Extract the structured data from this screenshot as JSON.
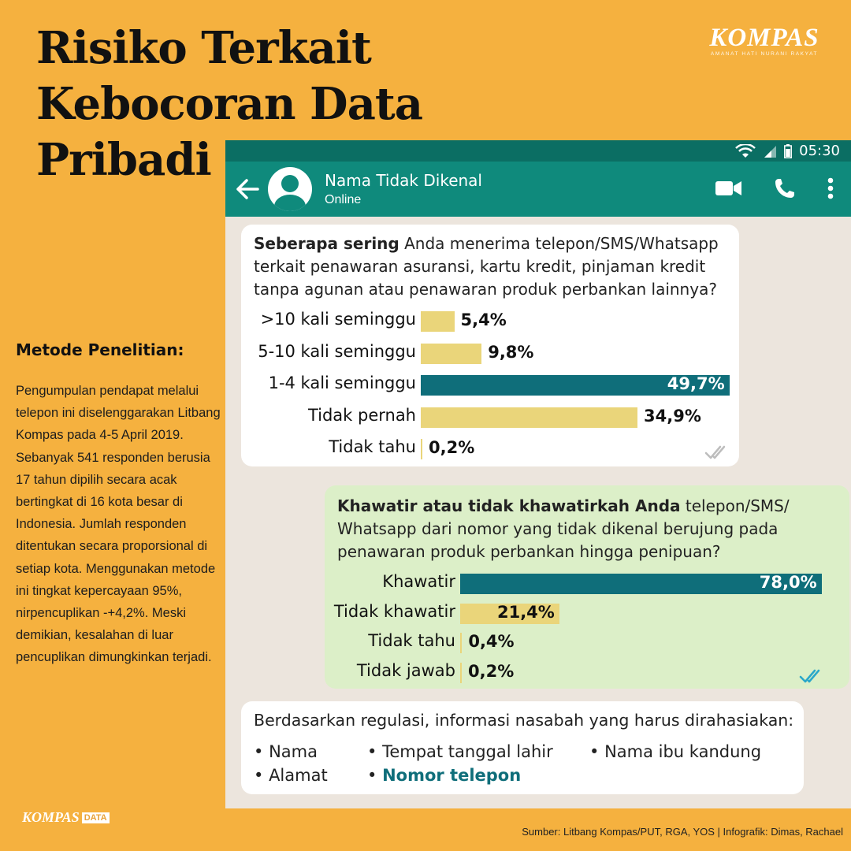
{
  "title": [
    "Risiko Terkait",
    "Kebocoran Data",
    "Pribadi"
  ],
  "brand": {
    "name": "KOMPAS",
    "tagline": "AMANAT HATI NURANI RAKYAT"
  },
  "method": {
    "heading": "Metode Penelitian:",
    "body": "Pengumpulan pendapat melalui telepon ini diselenggarakan Litbang Kompas pada 4-5 April 2019. Sebanyak 541 responden berusia 17 tahun dipilih secara acak bertingkat di 16 kota besar di Indonesia. Jumlah responden ditentukan secara proporsional di setiap kota. Menggunakan metode ini tingkat kepercayaan 95%, nirpencuplikan -+4,2%. Meski demikian, kesalahan di luar pencuplikan dimungkinkan terjadi."
  },
  "phone": {
    "time": "05:30",
    "contact_name": "Nama Tidak Dikenal",
    "contact_status": "Online"
  },
  "colors": {
    "accent": "#0F6E7A",
    "bar_light": "#EAD57A",
    "page": "#F5B13F"
  },
  "chart_data": [
    {
      "type": "bar",
      "orientation": "horizontal",
      "question_bold": "Seberapa sering",
      "question_rest": " Anda menerima telepon/SMS/Whatsapp terkait penawaran asuransi, kartu kredit, pinjaman kredit tanpa agunan atau penawaran produk perbankan lainnya?",
      "categories": [
        ">10 kali seminggu",
        "5-10 kali seminggu",
        "1-4 kali seminggu",
        "Tidak pernah",
        "Tidak tahu"
      ],
      "values": [
        5.4,
        9.8,
        49.7,
        34.9,
        0.2
      ],
      "value_labels": [
        "5,4%",
        "9,8%",
        "49,7%",
        "34,9%",
        "0,2%"
      ],
      "highlight_index": 2
    },
    {
      "type": "bar",
      "orientation": "horizontal",
      "question_bold": "Khawatir atau tidak khawatirkah Anda",
      "question_rest": " telepon/SMS/ Whatsapp dari nomor yang tidak dikenal berujung pada penawaran produk perbankan hingga penipuan?",
      "categories": [
        "Khawatir",
        "Tidak khawatir",
        "Tidak tahu",
        "Tidak jawab"
      ],
      "values": [
        78.0,
        21.4,
        0.4,
        0.2
      ],
      "value_labels": [
        "78,0%",
        "21,4%",
        "0,4%",
        "0,2%"
      ],
      "highlight_index": 0
    }
  ],
  "regulation": {
    "heading": "Berdasarkan regulasi, informasi nasabah yang harus dirahasiakan:",
    "items": [
      "Nama",
      "Tempat tanggal lahir",
      "Nama ibu kandung",
      "Alamat",
      "Nomor telepon"
    ],
    "highlight": "Nomor telepon"
  },
  "source": "Sumber: Litbang Kompas/PUT, RGA, YOS  |  Infografik: Dimas, Rachael",
  "footer_logo": {
    "name": "KOMPAS",
    "badge": "DATA"
  }
}
